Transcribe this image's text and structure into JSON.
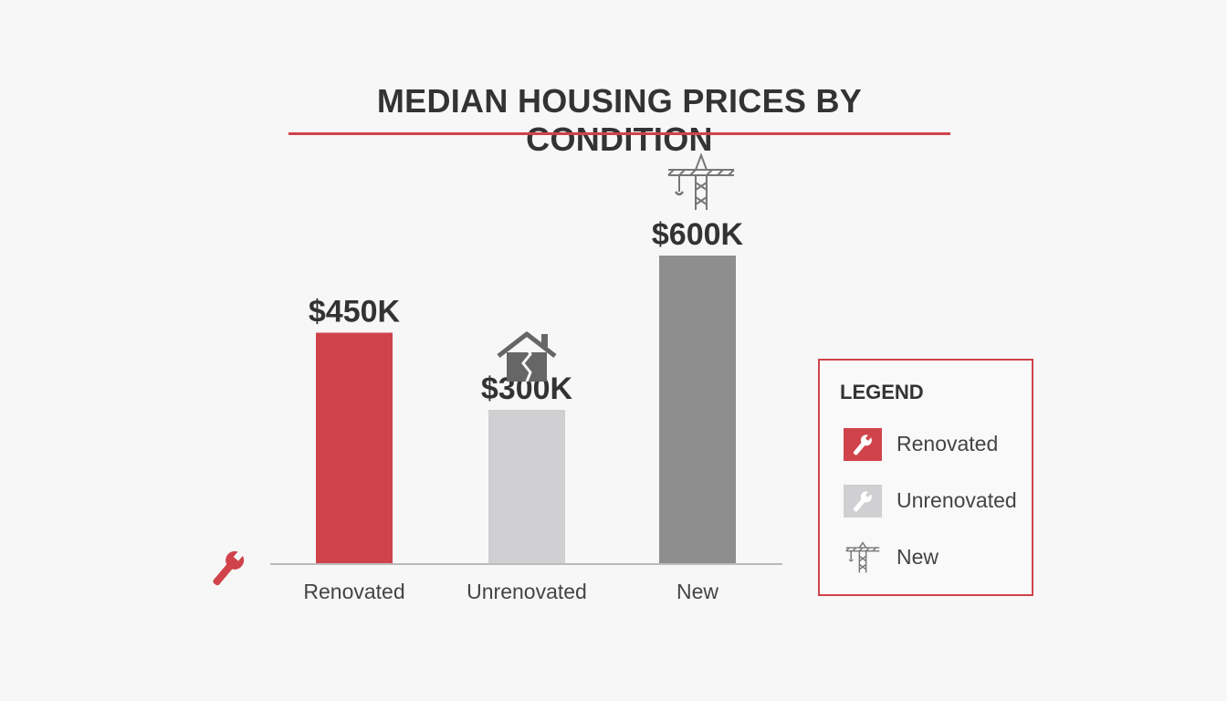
{
  "colors": {
    "accent": "#d0434a",
    "title": "#333333",
    "axis": "#bbbbbb",
    "unrenovated": "#d0d0d2",
    "new": "#8e8e8e"
  },
  "chart_data": {
    "type": "bar",
    "title": "MEDIAN HOUSING PRICES BY CONDITION",
    "xlabel": "",
    "ylabel": "",
    "ylim": [
      0,
      600
    ],
    "grid": false,
    "legend_position": "right",
    "categories": [
      "Renovated",
      "Unrenovated",
      "New"
    ],
    "values": [
      450,
      300,
      600
    ],
    "value_labels": [
      "$450K",
      "$300K",
      "$600K"
    ],
    "bar_colors": [
      "#d0434a",
      "#d0d0d2",
      "#8e8e8e"
    ],
    "bar_icons": [
      "",
      "broken-house-icon",
      "crane-icon"
    ],
    "axis_icon": "wrench-icon"
  },
  "legend": {
    "title": "LEGEND",
    "items": [
      {
        "label": "Renovated",
        "icon": "wrench-icon",
        "color": "#d0434a"
      },
      {
        "label": "Unrenovated",
        "icon": "wrench-icon",
        "color": "#d0d0d2"
      },
      {
        "label": "New",
        "icon": "crane-icon",
        "color": "#8e8e8e"
      }
    ]
  }
}
